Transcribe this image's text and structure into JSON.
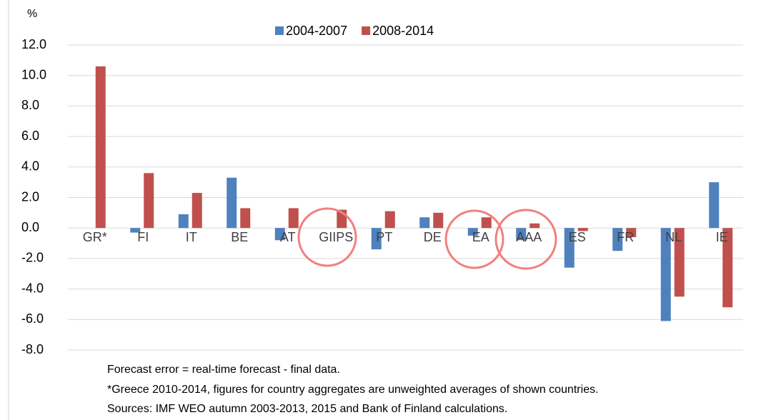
{
  "chart_data": {
    "type": "bar",
    "y_label": "%",
    "categories": [
      "GR*",
      "FI",
      "IT",
      "BE",
      "AT",
      "GIIPS",
      "PT",
      "DE",
      "EA",
      "AAA",
      "ES",
      "FR",
      "NL",
      "IE"
    ],
    "series": [
      {
        "name": "2004-2007",
        "color": "#4f81bd",
        "values": [
          null,
          -0.3,
          0.9,
          3.3,
          -0.8,
          null,
          -1.4,
          0.7,
          -0.5,
          -0.8,
          -2.6,
          -1.5,
          -6.1,
          3.0
        ]
      },
      {
        "name": "2008-2014",
        "color": "#c0504d",
        "values": [
          10.6,
          3.6,
          2.3,
          1.3,
          1.3,
          1.2,
          1.1,
          1.0,
          0.7,
          0.3,
          -0.2,
          -0.6,
          -4.5,
          -5.2
        ]
      }
    ],
    "ylim": [
      -8,
      12
    ],
    "yticks": [
      {
        "value": -8,
        "label": "-8.0"
      },
      {
        "value": -6,
        "label": "-6.0"
      },
      {
        "value": -4,
        "label": "-4.0"
      },
      {
        "value": -2,
        "label": "-2.0"
      },
      {
        "value": 0,
        "label": "0.0"
      },
      {
        "value": 2,
        "label": "2.0"
      },
      {
        "value": 4,
        "label": "4.0"
      },
      {
        "value": 6,
        "label": "6.0"
      },
      {
        "value": 8,
        "label": "8.0"
      },
      {
        "value": 10,
        "label": "10.0"
      },
      {
        "value": 12,
        "label": "12.0"
      }
    ],
    "grid": true,
    "legend": "top",
    "notes": [
      "Forecast error = real-time forecast - final data.",
      "*Greece 2010-2014, figures for country aggregates are unweighted averages of shown countries.",
      "Sources: IMF WEO autumn 2003-2013, 2015 and Bank of Finland calculations."
    ]
  }
}
